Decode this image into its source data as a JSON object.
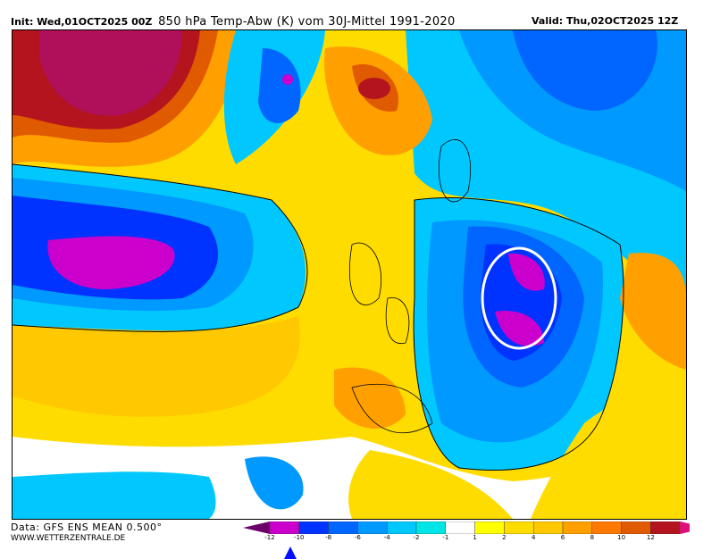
{
  "header": {
    "init": "Init: Wed,01OCT2025 00Z",
    "title": "850 hPa Temp-Abw (K) vom 30J-Mittel 1991-2020",
    "valid": "Valid: Thu,02OCT2025 12Z"
  },
  "footer": {
    "data_source": "Data: GFS ENS MEAN 0.500°",
    "website": "WWW.WETTERZENTRALE.DE"
  },
  "legend": {
    "ticks": [
      "-12",
      "-10",
      "-8",
      "-6",
      "-4",
      "-2",
      "-1",
      "1",
      "2",
      "4",
      "6",
      "8",
      "10",
      "12"
    ],
    "colors": [
      "#6a0068",
      "#cc00cc",
      "#0033ff",
      "#0066ff",
      "#0099ff",
      "#00c8ff",
      "#00e6e6",
      "#ffffff",
      "#ffff00",
      "#ffdc00",
      "#ffc800",
      "#ffa000",
      "#ff7800",
      "#e05a00",
      "#b4141e",
      "#e0107a"
    ],
    "pointer_value": -11
  },
  "map": {
    "highlight": "ellipse-around-eastern-europe-cold-anomaly"
  }
}
